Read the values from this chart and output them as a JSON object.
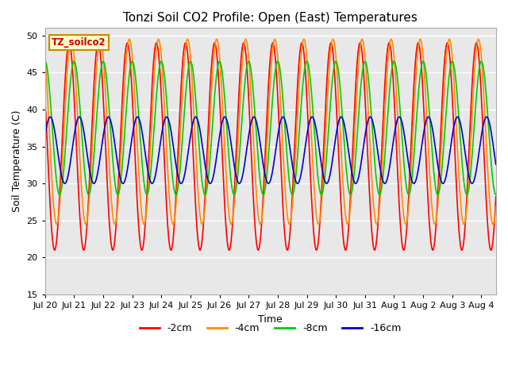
{
  "title": "Tonzi Soil CO2 Profile: Open (East) Temperatures",
  "xlabel": "Time",
  "ylabel": "Soil Temperature (C)",
  "ylim": [
    15,
    51
  ],
  "yticks": [
    15,
    20,
    25,
    30,
    35,
    40,
    45,
    50
  ],
  "label_box_text": "TZ_soilco2",
  "fig_facecolor": "#ffffff",
  "plot_bg_color": "#e8e8e8",
  "series": [
    {
      "label": "-2cm",
      "color": "#ff0000",
      "amplitude": 14.0,
      "mean": 35.0,
      "phase_shift": 0.0
    },
    {
      "label": "-4cm",
      "color": "#ff8c00",
      "amplitude": 12.5,
      "mean": 37.0,
      "phase_shift": 0.07
    },
    {
      "label": "-8cm",
      "color": "#00cc00",
      "amplitude": 9.0,
      "mean": 37.5,
      "phase_shift": 0.17
    },
    {
      "label": "-16cm",
      "color": "#0000cc",
      "amplitude": 4.5,
      "mean": 34.5,
      "phase_shift": 0.35
    }
  ],
  "xtick_labels": [
    "Jul 20",
    "Jul 21",
    "Jul 22",
    "Jul 23",
    "Jul 24",
    "Jul 25",
    "Jul 26",
    "Jul 27",
    "Jul 28",
    "Jul 29",
    "Jul 30",
    "Jul 31",
    "Aug 1",
    "Aug 2",
    "Aug 3",
    "Aug 4"
  ],
  "n_days": 15.5,
  "legend_labels": [
    "-2cm",
    "-4cm",
    "-8cm",
    "-16cm"
  ],
  "legend_colors": [
    "#ff0000",
    "#ff8c00",
    "#00cc00",
    "#0000cc"
  ],
  "title_fontsize": 11,
  "axis_label_fontsize": 9,
  "tick_fontsize": 8
}
